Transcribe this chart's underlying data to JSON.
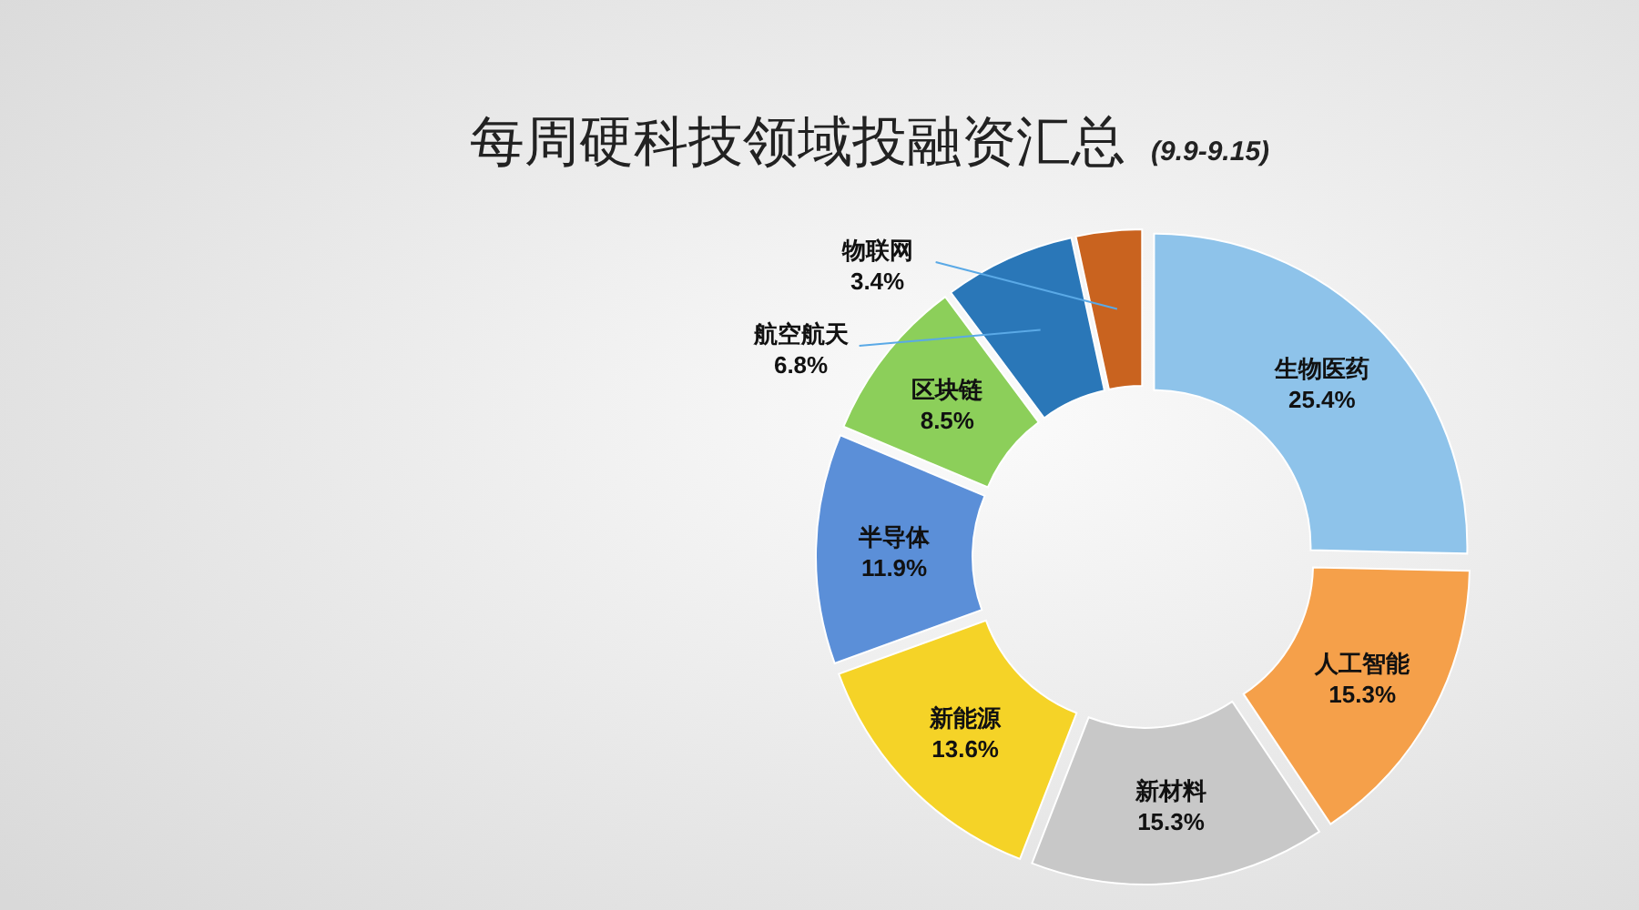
{
  "chart_data": {
    "type": "donut",
    "title": "每周硬科技领域投融资汇总",
    "subtitle": "(9.9-9.15)",
    "categories": [
      "生物医药",
      "人工智能",
      "新材料",
      "新能源",
      "半导体",
      "区块链",
      "航空航天",
      "物联网"
    ],
    "values": [
      25.4,
      15.3,
      15.3,
      13.6,
      11.9,
      8.5,
      6.8,
      3.4
    ],
    "colors": [
      "#8ec3ea",
      "#f5a04a",
      "#c8c8c8",
      "#f5d327",
      "#5b8fd8",
      "#8ccf5a",
      "#2a77b8",
      "#c9631f"
    ],
    "value_labels": [
      "25.4%",
      "15.3%",
      "15.3%",
      "13.6%",
      "11.9%",
      "8.5%",
      "6.8%",
      "3.4%"
    ]
  }
}
